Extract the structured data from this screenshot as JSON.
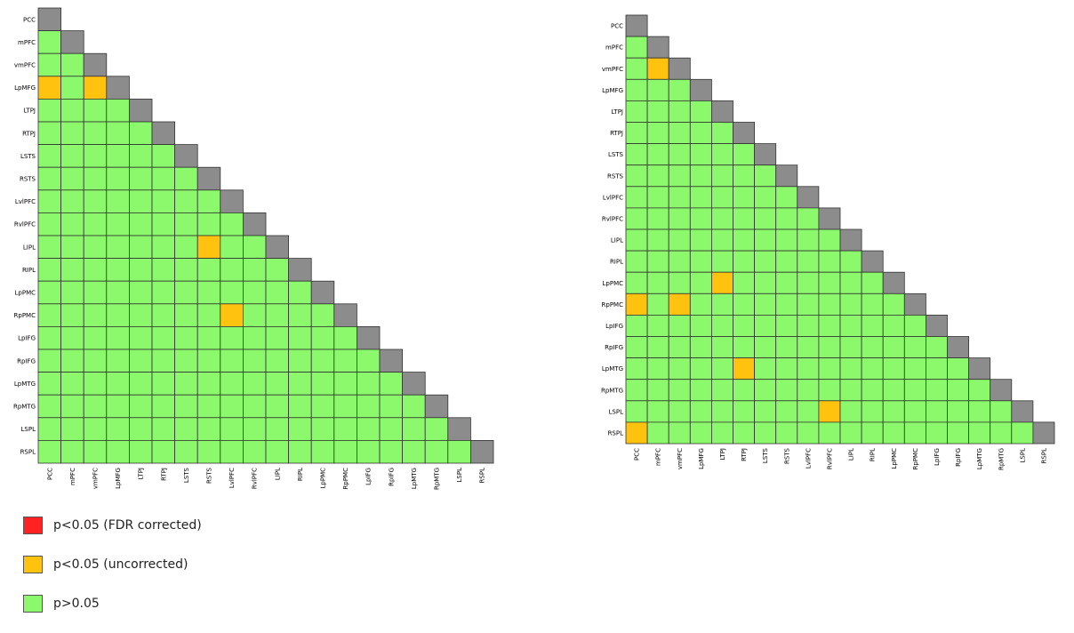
{
  "chart_data": [
    {
      "type": "heatmap",
      "labels": [
        "PCC",
        "mPFC",
        "vmPFC",
        "LpMFG",
        "LTPJ",
        "RTPJ",
        "LSTS",
        "RSTS",
        "LvlPFC",
        "RvlPFC",
        "LIPL",
        "RIPL",
        "LpPMC",
        "RpPMC",
        "LpIFG",
        "RpIFG",
        "LpMTG",
        "RpMTG",
        "LSPL",
        "RSPL"
      ],
      "uncorrected_p_lt_05": [
        {
          "row": "LpMFG",
          "col": "PCC"
        },
        {
          "row": "LpMFG",
          "col": "vmPFC"
        },
        {
          "row": "LIPL",
          "col": "RSTS"
        },
        {
          "row": "RpPMC",
          "col": "LvlPFC"
        }
      ],
      "fdr_p_lt_05": []
    },
    {
      "type": "heatmap",
      "labels": [
        "PCC",
        "mPFC",
        "vmPFC",
        "LpMFG",
        "LTPJ",
        "RTPJ",
        "LSTS",
        "RSTS",
        "LvlPFC",
        "RvlPFC",
        "LIPL",
        "RIPL",
        "LpPMC",
        "RpPMC",
        "LpIFG",
        "RpIFG",
        "LpMTG",
        "RpMTG",
        "LSPL",
        "RSPL"
      ],
      "uncorrected_p_lt_05": [
        {
          "row": "vmPFC",
          "col": "mPFC"
        },
        {
          "row": "LpPMC",
          "col": "LTPJ"
        },
        {
          "row": "RpPMC",
          "col": "PCC"
        },
        {
          "row": "RpPMC",
          "col": "vmPFC"
        },
        {
          "row": "LpMTG",
          "col": "RTPJ"
        },
        {
          "row": "LSPL",
          "col": "RvlPFC"
        },
        {
          "row": "RSPL",
          "col": "PCC"
        }
      ],
      "fdr_p_lt_05": []
    }
  ],
  "colors": {
    "diagonal": "#8c8c8c",
    "not_significant": "#8bf96b",
    "uncorrected": "#ffc20e",
    "fdr": "#ff2222",
    "grid": "#333333"
  },
  "legend": [
    {
      "label": "p<0.05 (FDR corrected)",
      "color": "#ff2222"
    },
    {
      "label": "p<0.05 (uncorrected)",
      "color": "#ffc20e"
    },
    {
      "label": "p>0.05",
      "color": "#8bf96b"
    }
  ]
}
